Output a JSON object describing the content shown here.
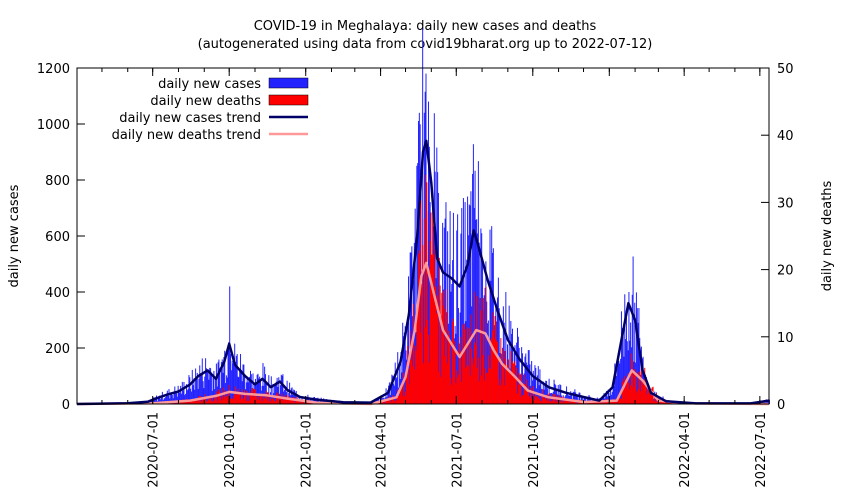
{
  "chart_data": {
    "type": "bar",
    "title": "COVID-19 in Meghalaya: daily new cases and deaths",
    "subtitle": "(autogenerated using data from covid19bharat.org up to 2022-07-12)",
    "ylabel_left": "daily new cases",
    "ylabel_right": "daily new deaths",
    "x_start": "2020-04-01",
    "x_end": "2022-07-12",
    "ylim_left": [
      0,
      1200
    ],
    "ylim_right": [
      0,
      50
    ],
    "yticks_left": [
      "0",
      "200",
      "400",
      "600",
      "800",
      "1000",
      "1200"
    ],
    "yticks_right": [
      "0",
      "10",
      "20",
      "30",
      "40",
      "50"
    ],
    "xticks": [
      "2020-07-01",
      "2020-10-01",
      "2021-01-01",
      "2021-04-01",
      "2021-07-01",
      "2021-10-01",
      "2022-01-01",
      "2022-04-01",
      "2022-07-01"
    ],
    "colors": {
      "cases_bar": "#2222ff",
      "deaths_bar": "#ff0000",
      "cases_trend": "#000066",
      "deaths_trend": "#ff9999"
    },
    "legend": [
      {
        "label": "daily new cases",
        "kind": "box",
        "color": "#2222ff"
      },
      {
        "label": "daily new deaths",
        "kind": "box",
        "color": "#ff0000"
      },
      {
        "label": "daily new cases trend",
        "kind": "line",
        "color": "#000066"
      },
      {
        "label": "daily new deaths trend",
        "kind": "line",
        "color": "#ff9999"
      }
    ],
    "cases_trend": [
      [
        "2020-04-01",
        0
      ],
      [
        "2020-06-01",
        3
      ],
      [
        "2020-06-25",
        8
      ],
      [
        "2020-07-05",
        20
      ],
      [
        "2020-07-20",
        35
      ],
      [
        "2020-08-01",
        45
      ],
      [
        "2020-08-15",
        70
      ],
      [
        "2020-08-25",
        100
      ],
      [
        "2020-09-05",
        120
      ],
      [
        "2020-09-15",
        90
      ],
      [
        "2020-09-25",
        150
      ],
      [
        "2020-10-01",
        215
      ],
      [
        "2020-10-08",
        140
      ],
      [
        "2020-10-20",
        100
      ],
      [
        "2020-11-01",
        70
      ],
      [
        "2020-11-10",
        90
      ],
      [
        "2020-11-20",
        60
      ],
      [
        "2020-12-01",
        80
      ],
      [
        "2020-12-10",
        50
      ],
      [
        "2020-12-25",
        25
      ],
      [
        "2021-01-15",
        15
      ],
      [
        "2021-02-15",
        6
      ],
      [
        "2021-03-20",
        5
      ],
      [
        "2021-04-10",
        40
      ],
      [
        "2021-04-25",
        150
      ],
      [
        "2021-05-05",
        320
      ],
      [
        "2021-05-15",
        600
      ],
      [
        "2021-05-22",
        900
      ],
      [
        "2021-05-26",
        940
      ],
      [
        "2021-06-01",
        790
      ],
      [
        "2021-06-08",
        520
      ],
      [
        "2021-06-15",
        470
      ],
      [
        "2021-06-25",
        450
      ],
      [
        "2021-07-05",
        420
      ],
      [
        "2021-07-15",
        500
      ],
      [
        "2021-07-22",
        620
      ],
      [
        "2021-07-28",
        560
      ],
      [
        "2021-08-08",
        440
      ],
      [
        "2021-08-20",
        330
      ],
      [
        "2021-09-01",
        230
      ],
      [
        "2021-09-15",
        160
      ],
      [
        "2021-10-01",
        100
      ],
      [
        "2021-10-20",
        60
      ],
      [
        "2021-11-10",
        40
      ],
      [
        "2021-12-01",
        25
      ],
      [
        "2021-12-20",
        12
      ],
      [
        "2022-01-05",
        60
      ],
      [
        "2022-01-15",
        220
      ],
      [
        "2022-01-24",
        360
      ],
      [
        "2022-02-01",
        300
      ],
      [
        "2022-02-10",
        120
      ],
      [
        "2022-02-20",
        40
      ],
      [
        "2022-03-10",
        10
      ],
      [
        "2022-04-15",
        2
      ],
      [
        "2022-06-20",
        2
      ],
      [
        "2022-07-12",
        12
      ]
    ],
    "deaths_trend": [
      [
        "2020-04-01",
        0
      ],
      [
        "2020-07-01",
        0.1
      ],
      [
        "2020-08-15",
        0.5
      ],
      [
        "2020-09-15",
        1.2
      ],
      [
        "2020-10-01",
        1.8
      ],
      [
        "2020-10-20",
        1.5
      ],
      [
        "2020-11-15",
        1.3
      ],
      [
        "2020-12-10",
        0.8
      ],
      [
        "2021-01-15",
        0.2
      ],
      [
        "2021-03-20",
        0
      ],
      [
        "2021-04-20",
        1
      ],
      [
        "2021-05-01",
        4
      ],
      [
        "2021-05-12",
        11
      ],
      [
        "2021-05-20",
        19
      ],
      [
        "2021-05-26",
        21
      ],
      [
        "2021-06-05",
        16
      ],
      [
        "2021-06-15",
        11
      ],
      [
        "2021-06-25",
        9
      ],
      [
        "2021-07-05",
        7
      ],
      [
        "2021-07-15",
        9
      ],
      [
        "2021-07-25",
        11
      ],
      [
        "2021-08-05",
        10.5
      ],
      [
        "2021-08-15",
        8
      ],
      [
        "2021-08-25",
        6
      ],
      [
        "2021-09-10",
        4
      ],
      [
        "2021-09-25",
        2
      ],
      [
        "2021-10-20",
        1
      ],
      [
        "2021-12-01",
        0.3
      ],
      [
        "2022-01-10",
        0.5
      ],
      [
        "2022-01-28",
        5
      ],
      [
        "2022-02-10",
        3.5
      ],
      [
        "2022-03-01",
        0.5
      ],
      [
        "2022-04-01",
        0.1
      ],
      [
        "2022-07-12",
        0
      ]
    ],
    "cases_spikes": [
      [
        "2020-10-01",
        420
      ],
      [
        "2021-05-25",
        1180
      ],
      [
        "2021-05-28",
        1080
      ],
      [
        "2021-06-05",
        830
      ],
      [
        "2021-07-22",
        700
      ],
      [
        "2021-07-25",
        660
      ],
      [
        "2021-08-01",
        520
      ],
      [
        "2022-01-24",
        400
      ],
      [
        "2022-01-28",
        390
      ]
    ]
  }
}
